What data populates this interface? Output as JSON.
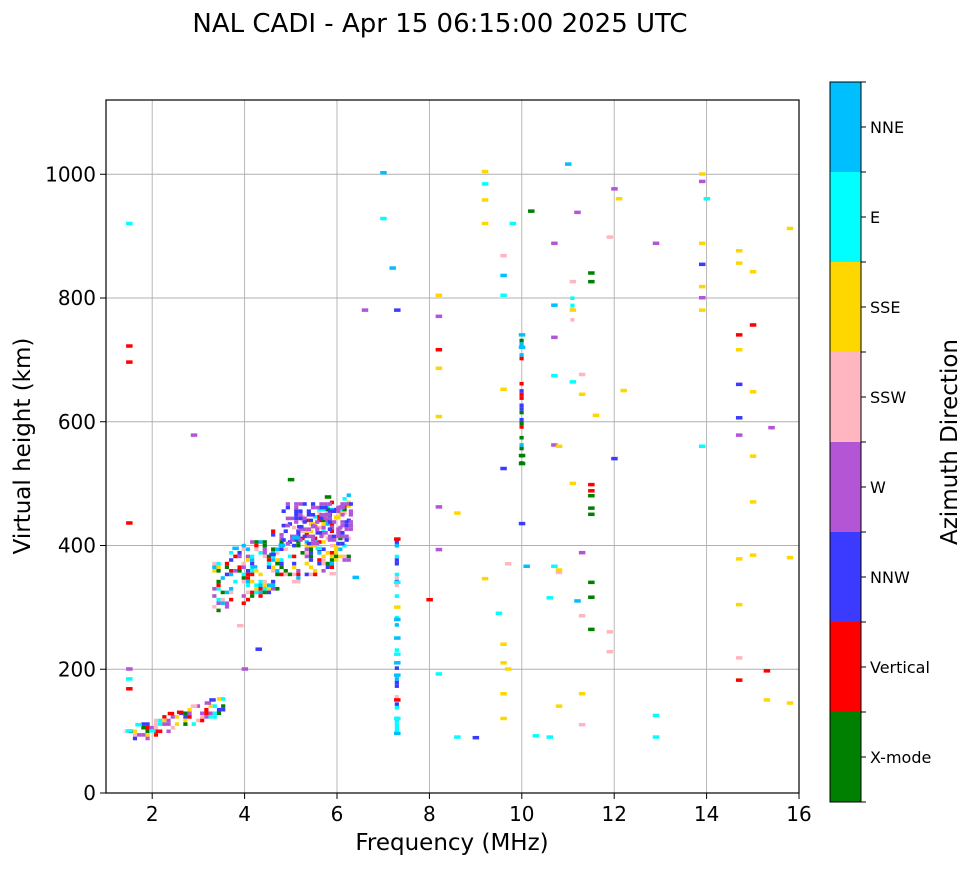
{
  "chart_data": {
    "type": "scatter",
    "title": "NAL CADI - Apr 15 06:15:00 2025 UTC",
    "xlabel": "Frequency (MHz)",
    "ylabel": "Virtual height (km)",
    "xlim": [
      1,
      16
    ],
    "ylim": [
      0,
      1120
    ],
    "xticks": [
      2,
      4,
      6,
      8,
      10,
      12,
      14,
      16
    ],
    "yticks": [
      0,
      200,
      400,
      600,
      800,
      1000
    ],
    "grid": true,
    "colorbar": {
      "label": "Azimuth Direction",
      "categories": [
        "X-mode",
        "Vertical",
        "NNW",
        "W",
        "SSW",
        "SSE",
        "E",
        "NNE"
      ],
      "colors": [
        "#008000",
        "#ff0000",
        "#3b3bff",
        "#b455d6",
        "#ffb6c1",
        "#ffd700",
        "#00ffff",
        "#00bfff"
      ]
    },
    "series": [
      {
        "name": "X-mode",
        "points": [
          [
            5.0,
            506
          ],
          [
            5.8,
            478
          ],
          [
            10.2,
            940
          ],
          [
            11.5,
            840
          ],
          [
            11.5,
            826
          ],
          [
            11.5,
            340
          ],
          [
            11.5,
            316
          ],
          [
            11.5,
            264
          ],
          [
            11.5,
            480
          ],
          [
            11.5,
            460
          ],
          [
            11.5,
            450
          ],
          [
            10.0,
            545
          ],
          [
            10.0,
            532
          ]
        ]
      },
      {
        "name": "Vertical",
        "points": [
          [
            1.5,
            722
          ],
          [
            1.5,
            696
          ],
          [
            1.5,
            436
          ],
          [
            1.5,
            168
          ],
          [
            7.3,
            410
          ],
          [
            7.3,
            150
          ],
          [
            8.2,
            716
          ],
          [
            8.0,
            312
          ],
          [
            11.5,
            498
          ],
          [
            11.5,
            488
          ],
          [
            14.7,
            740
          ],
          [
            15.0,
            756
          ],
          [
            15.3,
            197
          ],
          [
            14.7,
            182
          ],
          [
            2.4,
            128
          ],
          [
            2.6,
            130
          ]
        ]
      },
      {
        "name": "NNW",
        "points": [
          [
            7.3,
            780
          ],
          [
            9.6,
            524
          ],
          [
            9.0,
            89
          ],
          [
            10.0,
            435
          ],
          [
            12.0,
            540
          ],
          [
            13.9,
            854
          ],
          [
            14.7,
            660
          ],
          [
            14.7,
            606
          ],
          [
            4.3,
            232
          ],
          [
            4.6,
            385
          ],
          [
            5.2,
            430
          ],
          [
            3.3,
            150
          ],
          [
            5.6,
            420
          ]
        ]
      },
      {
        "name": "W",
        "points": [
          [
            1.5,
            200
          ],
          [
            2.9,
            578
          ],
          [
            4.0,
            200
          ],
          [
            5.5,
            430
          ],
          [
            5.8,
            450
          ],
          [
            6.0,
            445
          ],
          [
            6.1,
            462
          ],
          [
            6.6,
            780
          ],
          [
            8.2,
            770
          ],
          [
            8.2,
            462
          ],
          [
            8.2,
            393
          ],
          [
            10.7,
            562
          ],
          [
            10.7,
            736
          ],
          [
            10.7,
            888
          ],
          [
            11.2,
            938
          ],
          [
            11.3,
            388
          ],
          [
            12.0,
            976
          ],
          [
            12.9,
            888
          ],
          [
            13.9,
            988
          ],
          [
            13.9,
            800
          ],
          [
            14.7,
            578
          ],
          [
            15.4,
            590
          ],
          [
            3.2,
            145
          ]
        ]
      },
      {
        "name": "SSW",
        "points": [
          [
            9.6,
            868
          ],
          [
            9.7,
            370
          ],
          [
            10.8,
            356
          ],
          [
            11.1,
            826
          ],
          [
            11.3,
            676
          ],
          [
            11.3,
            286
          ],
          [
            11.3,
            110
          ],
          [
            11.9,
            898
          ],
          [
            11.9,
            260
          ],
          [
            11.9,
            228
          ],
          [
            14.7,
            218
          ],
          [
            5.9,
            354
          ],
          [
            3.9,
            270
          ],
          [
            2.9,
            140
          ]
        ]
      },
      {
        "name": "SSE",
        "points": [
          [
            9.2,
            1004
          ],
          [
            9.2,
            958
          ],
          [
            9.2,
            920
          ],
          [
            9.2,
            346
          ],
          [
            9.6,
            652
          ],
          [
            9.6,
            240
          ],
          [
            9.6,
            210
          ],
          [
            9.6,
            160
          ],
          [
            9.6,
            120
          ],
          [
            9.7,
            200
          ],
          [
            10.8,
            560
          ],
          [
            10.8,
            360
          ],
          [
            10.8,
            140
          ],
          [
            11.1,
            780
          ],
          [
            11.1,
            500
          ],
          [
            11.3,
            644
          ],
          [
            11.3,
            160
          ],
          [
            11.6,
            610
          ],
          [
            12.1,
            960
          ],
          [
            12.2,
            650
          ],
          [
            13.9,
            1000
          ],
          [
            13.9,
            888
          ],
          [
            13.9,
            818
          ],
          [
            13.9,
            780
          ],
          [
            14.7,
            876
          ],
          [
            14.7,
            856
          ],
          [
            14.7,
            716
          ],
          [
            14.7,
            378
          ],
          [
            14.7,
            304
          ],
          [
            15.0,
            842
          ],
          [
            15.0,
            648
          ],
          [
            15.0,
            544
          ],
          [
            15.0,
            470
          ],
          [
            15.0,
            384
          ],
          [
            15.3,
            150
          ],
          [
            15.8,
            912
          ],
          [
            15.8,
            380
          ],
          [
            15.8,
            145
          ],
          [
            8.2,
            804
          ],
          [
            8.2,
            686
          ],
          [
            8.2,
            608
          ],
          [
            8.6,
            452
          ],
          [
            7.3,
            300
          ],
          [
            6.0,
            445
          ]
        ]
      },
      {
        "name": "E",
        "points": [
          [
            1.5,
            920
          ],
          [
            1.5,
            184
          ],
          [
            1.5,
            100
          ],
          [
            7.0,
            928
          ],
          [
            8.2,
            192
          ],
          [
            8.6,
            90
          ],
          [
            9.2,
            984
          ],
          [
            9.5,
            290
          ],
          [
            9.6,
            804
          ],
          [
            9.8,
            920
          ],
          [
            10.3,
            92
          ],
          [
            10.6,
            90
          ],
          [
            10.7,
            674
          ],
          [
            10.7,
            366
          ],
          [
            10.6,
            315
          ],
          [
            11.1,
            664
          ],
          [
            12.9,
            125
          ],
          [
            12.9,
            90
          ],
          [
            13.9,
            560
          ],
          [
            14.0,
            960
          ],
          [
            7.3,
            340
          ],
          [
            7.3,
            224
          ],
          [
            7.3,
            120
          ],
          [
            1.7,
            110
          ],
          [
            2.0,
            100
          ],
          [
            5.6,
            395
          ]
        ]
      },
      {
        "name": "NNE",
        "points": [
          [
            7.0,
            1002
          ],
          [
            7.2,
            848
          ],
          [
            7.3,
            280
          ],
          [
            7.3,
            250
          ],
          [
            7.3,
            210
          ],
          [
            7.3,
            190
          ],
          [
            7.3,
            96
          ],
          [
            9.6,
            836
          ],
          [
            10.0,
            740
          ],
          [
            10.0,
            720
          ],
          [
            10.7,
            788
          ],
          [
            10.1,
            366
          ],
          [
            11.0,
            1016
          ],
          [
            11.2,
            310
          ],
          [
            6.4,
            348
          ],
          [
            4.2,
            365
          ],
          [
            4.8,
            400
          ],
          [
            3.8,
            395
          ],
          [
            5.1,
            412
          ]
        ]
      }
    ],
    "regions": [
      {
        "name": "E-layer trace",
        "x_range": [
          1.4,
          3.6
        ],
        "y_range": [
          88,
          155
        ],
        "mix": [
          "#00ffff",
          "#3b3bff",
          "#ff0000",
          "#b455d6",
          "#ffb6c1",
          "#ffd700",
          "#008000"
        ]
      },
      {
        "name": "F-layer cluster",
        "x_range": [
          3.3,
          6.3
        ],
        "y_range": [
          290,
          490
        ],
        "mix": [
          "#ff0000",
          "#b455d6",
          "#3b3bff",
          "#00ffff",
          "#ffd700",
          "#ffb6c1",
          "#00bfff",
          "#008000"
        ]
      },
      {
        "name": "F-layer purple band",
        "x_range": [
          4.8,
          6.3
        ],
        "y_range": [
          400,
          470
        ],
        "mix": [
          "#b455d6",
          "#3b3bff",
          "#b455d6"
        ]
      },
      {
        "name": "Vertical column 10 MHz",
        "x_range": [
          9.95,
          10.05
        ],
        "y_range": [
          530,
          740
        ],
        "mix": [
          "#008000",
          "#ff0000",
          "#3b3bff",
          "#00bfff"
        ]
      },
      {
        "name": "Column 7.3 MHz",
        "x_range": [
          7.25,
          7.35
        ],
        "y_range": [
          90,
          420
        ],
        "mix": [
          "#00bfff",
          "#00ffff",
          "#ffb6c1",
          "#3b3bff"
        ]
      },
      {
        "name": "Column 11.1 MHz",
        "x_range": [
          11.05,
          11.15
        ],
        "y_range": [
          740,
          820
        ],
        "mix": [
          "#ffd700",
          "#00ffff",
          "#ffb6c1"
        ]
      }
    ]
  }
}
